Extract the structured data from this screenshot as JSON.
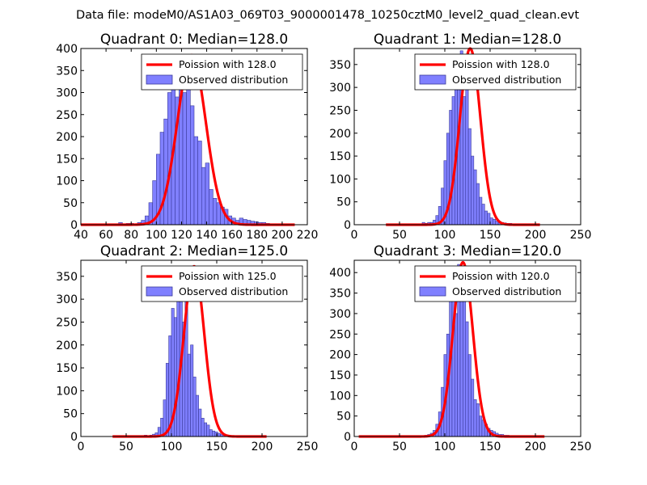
{
  "suptitle": "Data file: modeM0/AS1A03_069T03_9000001478_10250cztM0_level2_quad_clean.evt",
  "chart_data": [
    {
      "type": "bar",
      "title": "Quadrant 0: Median=128.0",
      "xlim": [
        40,
        220
      ],
      "ylim": [
        0,
        400
      ],
      "xticks": [
        40,
        60,
        80,
        100,
        120,
        140,
        160,
        180,
        200,
        220
      ],
      "xtick_labels": [
        "40",
        "60",
        "80",
        "100",
        "120",
        "140",
        "160",
        "180",
        "200",
        "220"
      ],
      "yticks": [
        0,
        50,
        100,
        150,
        200,
        250,
        300,
        350,
        400
      ],
      "ytick_labels": [
        "0",
        "50",
        "100",
        "150",
        "200",
        "250",
        "300",
        "350",
        "400"
      ],
      "legend": {
        "position": "top-right",
        "line_label": "Poission with 128.0",
        "bar_label": "Observed distribution"
      },
      "poisson_mean": 128.0,
      "poisson_peak": 385,
      "poisson_range": [
        40,
        210
      ],
      "hist": {
        "bin_start": 70,
        "bin_width": 3,
        "counts": [
          5,
          2,
          3,
          3,
          2,
          5,
          10,
          20,
          50,
          100,
          160,
          210,
          240,
          300,
          320,
          290,
          380,
          300,
          330,
          270,
          200,
          190,
          130,
          140,
          80,
          60,
          50,
          40,
          35,
          20,
          15,
          10,
          15,
          12,
          10,
          8,
          7,
          5,
          5,
          3,
          2,
          2,
          1,
          1,
          1,
          1
        ]
      }
    },
    {
      "type": "bar",
      "title": "Quadrant 1: Median=128.0",
      "xlim": [
        0,
        250
      ],
      "ylim": [
        0,
        385
      ],
      "xticks": [
        0,
        50,
        100,
        150,
        200,
        250
      ],
      "xtick_labels": [
        "0",
        "50",
        "100",
        "150",
        "200",
        "250"
      ],
      "yticks": [
        0,
        50,
        100,
        150,
        200,
        250,
        300,
        350
      ],
      "ytick_labels": [
        "0",
        "50",
        "100",
        "150",
        "200",
        "250",
        "300",
        "350"
      ],
      "legend": {
        "position": "top-right",
        "line_label": "Poission with 128.0",
        "bar_label": "Observed distribution"
      },
      "poisson_mean": 128.0,
      "poisson_peak": 385,
      "poisson_range": [
        35,
        205
      ],
      "hist": {
        "bin_start": 75,
        "bin_width": 3,
        "counts": [
          5,
          3,
          5,
          5,
          10,
          20,
          40,
          80,
          140,
          200,
          250,
          280,
          320,
          300,
          380,
          280,
          330,
          210,
          150,
          120,
          90,
          60,
          45,
          30,
          25,
          15,
          12,
          8,
          7,
          5,
          4,
          3,
          3,
          2,
          1,
          1,
          1
        ]
      }
    },
    {
      "type": "bar",
      "title": "Quadrant 2: Median=125.0",
      "xlim": [
        0,
        250
      ],
      "ylim": [
        0,
        385
      ],
      "xticks": [
        0,
        50,
        100,
        150,
        200,
        250
      ],
      "xtick_labels": [
        "0",
        "50",
        "100",
        "150",
        "200",
        "250"
      ],
      "yticks": [
        0,
        50,
        100,
        150,
        200,
        250,
        300,
        350
      ],
      "ytick_labels": [
        "0",
        "50",
        "100",
        "150",
        "200",
        "250",
        "300",
        "350"
      ],
      "legend": {
        "position": "top-right",
        "line_label": "Poission with 125.0",
        "bar_label": "Observed distribution"
      },
      "poisson_mean": 125.0,
      "poisson_peak": 372,
      "poisson_range": [
        35,
        205
      ],
      "hist": {
        "bin_start": 70,
        "bin_width": 3,
        "counts": [
          3,
          2,
          3,
          5,
          8,
          20,
          40,
          80,
          160,
          220,
          280,
          260,
          300,
          360,
          250,
          300,
          180,
          200,
          130,
          90,
          60,
          40,
          30,
          25,
          15,
          12,
          10,
          7,
          5,
          5,
          3,
          2,
          2,
          1,
          1
        ]
      }
    },
    {
      "type": "bar",
      "title": "Quadrant 3: Median=120.0",
      "xlim": [
        0,
        250
      ],
      "ylim": [
        0,
        430
      ],
      "xticks": [
        0,
        50,
        100,
        150,
        200,
        250
      ],
      "xtick_labels": [
        "0",
        "50",
        "100",
        "150",
        "200",
        "250"
      ],
      "yticks": [
        0,
        50,
        100,
        150,
        200,
        250,
        300,
        350,
        400
      ],
      "ytick_labels": [
        "0",
        "50",
        "100",
        "150",
        "200",
        "250",
        "300",
        "350",
        "400"
      ],
      "legend": {
        "position": "top-right",
        "line_label": "Poission with 120.0",
        "bar_label": "Observed distribution"
      },
      "poisson_mean": 120.0,
      "poisson_peak": 425,
      "poisson_range": [
        5,
        210
      ],
      "hist": {
        "bin_start": 75,
        "bin_width": 3,
        "counts": [
          2,
          3,
          5,
          8,
          15,
          30,
          60,
          120,
          200,
          250,
          340,
          350,
          300,
          420,
          330,
          370,
          280,
          200,
          140,
          90,
          80,
          50,
          40,
          30,
          20,
          15,
          12,
          8,
          5,
          5,
          3,
          3,
          2,
          1,
          1
        ]
      }
    }
  ]
}
